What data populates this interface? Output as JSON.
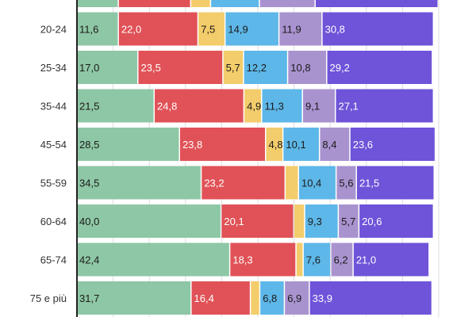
{
  "chart_data": {
    "type": "bar",
    "orientation": "horizontal",
    "stacked": true,
    "percent_stacked": true,
    "categories": [
      "",
      "20-24",
      "25-34",
      "35-44",
      "45-54",
      "55-59",
      "60-64",
      "65-74",
      "75 e più"
    ],
    "series": [
      {
        "color": "#8ec7a5",
        "values": [
          null,
          11.6,
          17.0,
          21.5,
          28.5,
          34.5,
          40.0,
          42.4,
          31.7
        ],
        "labels": [
          "",
          "11,6",
          "17,0",
          "21,5",
          "28,5",
          "34,5",
          "40,0",
          "42,4",
          "31,7"
        ]
      },
      {
        "color": "#e05257",
        "values": [
          null,
          22.0,
          23.5,
          24.8,
          23.8,
          23.2,
          20.1,
          18.3,
          16.4
        ],
        "labels": [
          "",
          "22,0",
          "23,5",
          "24,8",
          "23,8",
          "23,2",
          "20,1",
          "18,3",
          "16,4"
        ]
      },
      {
        "color": "#f3cc6b",
        "values": [
          null,
          7.5,
          5.7,
          4.9,
          4.8,
          3.7,
          3.0,
          2.0,
          2.6
        ],
        "labels": [
          "",
          "7,5",
          "5,7",
          "4,9",
          "4,8",
          "",
          "",
          "",
          ""
        ]
      },
      {
        "color": "#5db7e8",
        "values": [
          null,
          14.9,
          12.2,
          11.3,
          10.1,
          10.4,
          9.3,
          7.6,
          6.8
        ],
        "labels": [
          "",
          "14,9",
          "12,2",
          "11,3",
          "10,1",
          "10,4",
          "9,3",
          "7,6",
          "6,8"
        ]
      },
      {
        "color": "#a993cf",
        "values": [
          null,
          11.9,
          10.8,
          9.1,
          8.4,
          5.6,
          5.7,
          6.2,
          6.9
        ],
        "labels": [
          "",
          "11,9",
          "10,8",
          "9,1",
          "8,4",
          "5,6",
          "5,7",
          "6,2",
          "6,9"
        ]
      },
      {
        "color": "#6f53d9",
        "values": [
          null,
          30.8,
          29.2,
          27.1,
          23.6,
          21.5,
          20.6,
          21.0,
          33.9
        ],
        "labels": [
          "",
          "30,8",
          "29,2",
          "27,1",
          "23,6",
          "21,5",
          "20,6",
          "21,0",
          "33,9"
        ]
      }
    ],
    "top_row_partial_values": [
      11.6,
      20.0,
      5.5,
      13.5,
      15.4,
      34.0
    ],
    "xlim": [
      0,
      100
    ],
    "grid": true,
    "legend": "none"
  }
}
